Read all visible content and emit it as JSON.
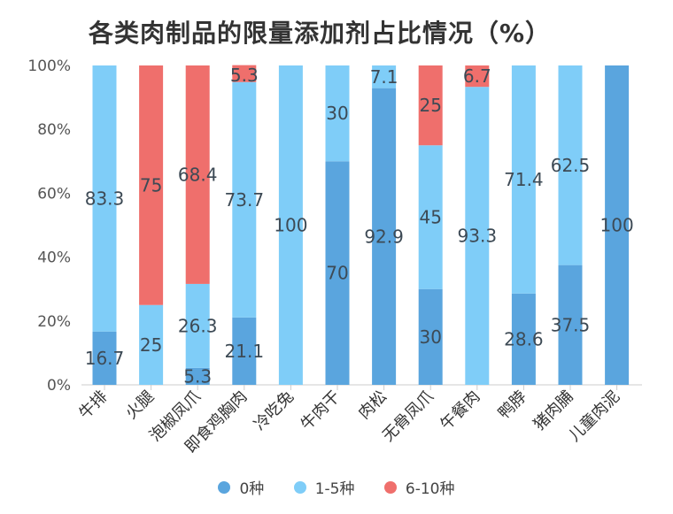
{
  "title": "各类肉制品的限量添加剂占比情况（%）",
  "colors": {
    "s0": "#5aa5de",
    "s1": "#7fcdf8",
    "s2": "#ef6f6c"
  },
  "chart_data": {
    "type": "bar",
    "stacked": true,
    "title": "各类肉制品的限量添加剂占比情况（%）",
    "categories": [
      "牛排",
      "火腿",
      "泡椒凤爪",
      "即食鸡胸肉",
      "冷吃兔",
      "牛肉干",
      "肉松",
      "无骨凤爪",
      "午餐肉",
      "鸭脖",
      "猪肉脯",
      "儿童肉泥"
    ],
    "series": [
      {
        "name": "0种",
        "values": [
          16.7,
          0,
          5.3,
          21.1,
          0,
          70,
          92.9,
          30,
          0,
          28.6,
          37.5,
          100
        ]
      },
      {
        "name": "1-5种",
        "values": [
          83.3,
          25,
          26.3,
          73.7,
          100,
          30,
          7.1,
          45,
          93.3,
          71.4,
          62.5,
          0
        ]
      },
      {
        "name": "6-10种",
        "values": [
          0,
          75,
          68.4,
          5.3,
          0,
          0,
          0,
          25,
          6.7,
          0,
          0,
          0
        ]
      }
    ],
    "y_ticks": [
      "0%",
      "20%",
      "40%",
      "60%",
      "80%",
      "100%"
    ],
    "ylim": [
      0,
      100
    ],
    "xlabel": "",
    "ylabel": "",
    "legend": "bottom",
    "grid": false
  }
}
